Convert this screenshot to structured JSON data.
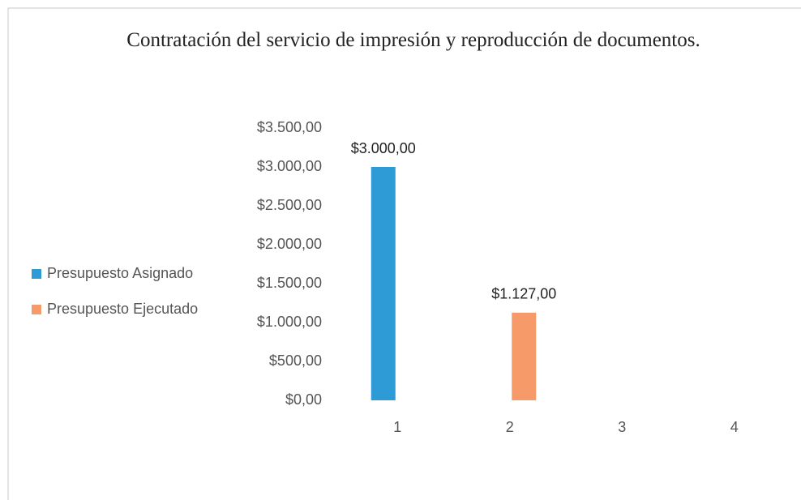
{
  "chart_data": {
    "type": "bar",
    "title": "Contratación del servicio de impresión y reproducción de documentos.",
    "categories": [
      "1",
      "2",
      "3",
      "4"
    ],
    "series": [
      {
        "name": "Presupuesto Asignado",
        "color": "#2e9bd6",
        "values": [
          3000,
          null,
          null,
          null
        ],
        "value_labels": [
          "$3.000,00",
          null,
          null,
          null
        ]
      },
      {
        "name": "Presupuesto Ejecutado",
        "color": "#f79a6a",
        "values": [
          null,
          1127,
          null,
          null
        ],
        "value_labels": [
          null,
          "$1.127,00",
          null,
          null
        ]
      }
    ],
    "ylim": [
      0,
      3500
    ],
    "yticks": [
      {
        "value": 0,
        "label": "$0,00"
      },
      {
        "value": 500,
        "label": "$500,00"
      },
      {
        "value": 1000,
        "label": "$1.000,00"
      },
      {
        "value": 1500,
        "label": "$1.500,00"
      },
      {
        "value": 2000,
        "label": "$2.000,00"
      },
      {
        "value": 2500,
        "label": "$2.500,00"
      },
      {
        "value": 3000,
        "label": "$3.000,00"
      },
      {
        "value": 3500,
        "label": "$3.500,00"
      }
    ],
    "legend": "left"
  }
}
